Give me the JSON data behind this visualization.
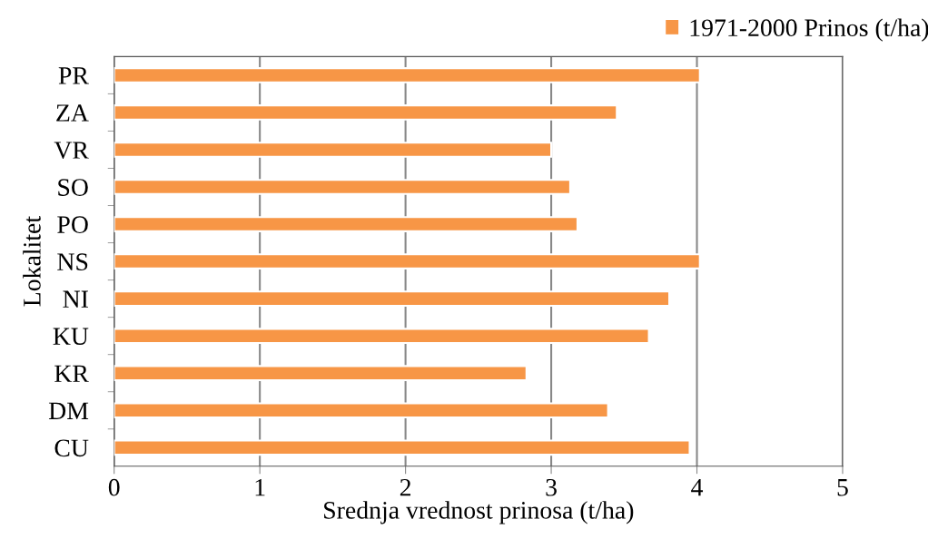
{
  "chart_data": {
    "type": "bar",
    "orientation": "horizontal",
    "xlabel": "Srednja vrednost prinosa (t/ha)",
    "ylabel": "Lokalitet",
    "categories": [
      "PR",
      "ZA",
      "VR",
      "SO",
      "PO",
      "NS",
      "NI",
      "KU",
      "KR",
      "DM",
      "CU"
    ],
    "series": [
      {
        "name": "1971-2000 Prinos (t/ha)",
        "color": "#f79646",
        "values": [
          4.02,
          3.45,
          3.0,
          3.13,
          3.18,
          4.02,
          3.81,
          3.67,
          2.83,
          3.39,
          3.95
        ]
      }
    ],
    "xlim": [
      0,
      5
    ],
    "xticks": [
      0,
      1,
      2,
      3,
      4,
      5
    ],
    "grid": "x",
    "legend": "top right"
  }
}
